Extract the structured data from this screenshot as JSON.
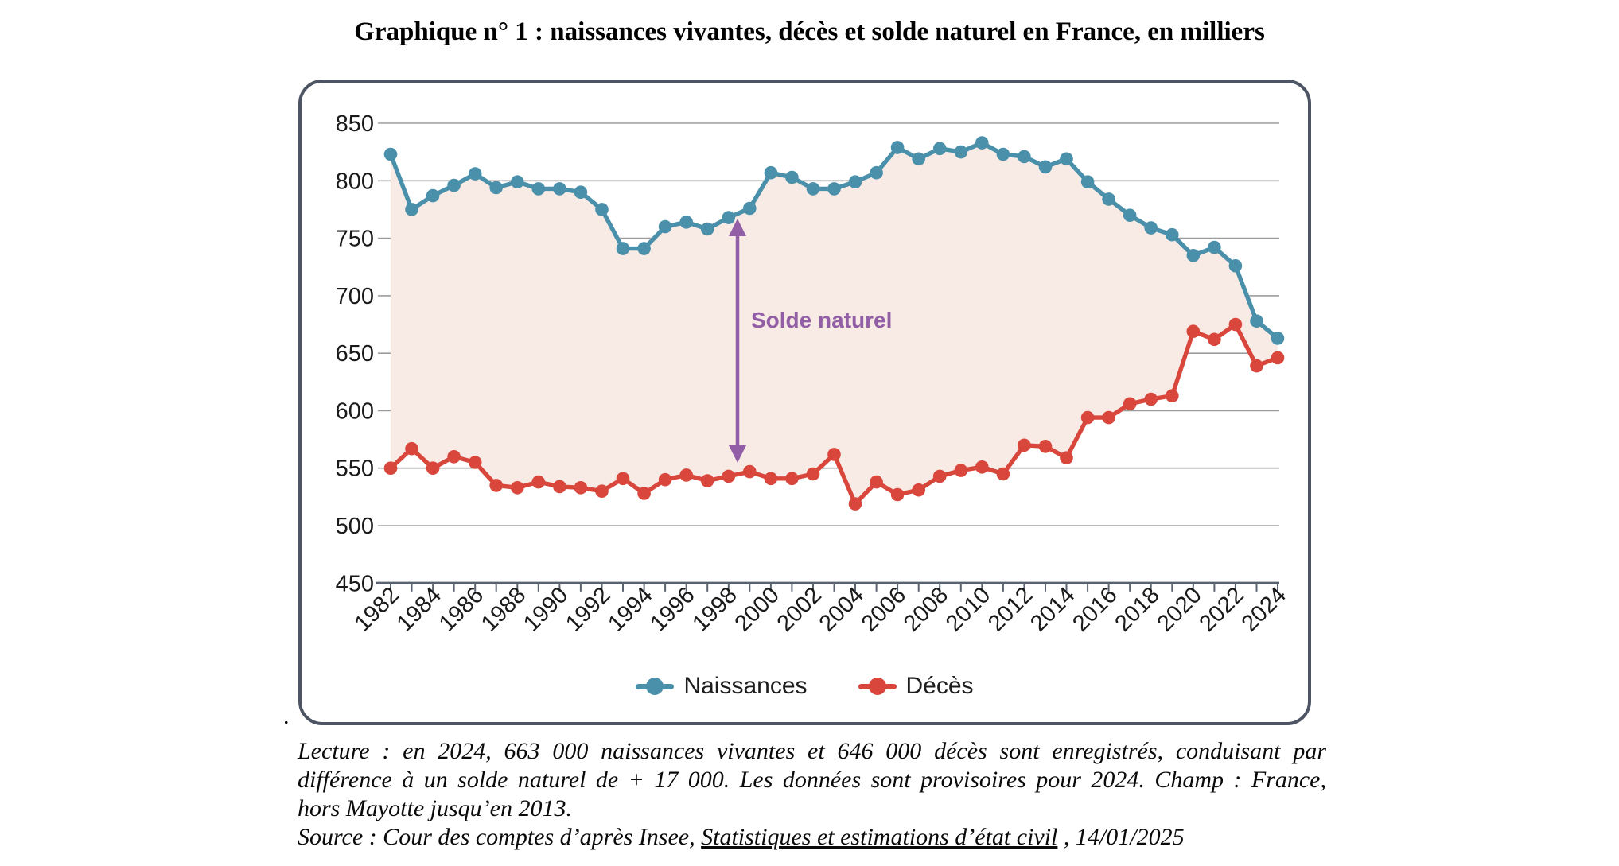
{
  "title": "Graphique n° 1 : naissances vivantes, décès et solde naturel en France, en milliers",
  "chart_data": {
    "type": "line",
    "x_years": [
      1982,
      1983,
      1984,
      1985,
      1986,
      1987,
      1988,
      1989,
      1990,
      1991,
      1992,
      1993,
      1994,
      1995,
      1996,
      1997,
      1998,
      1999,
      2000,
      2001,
      2002,
      2003,
      2004,
      2005,
      2006,
      2007,
      2008,
      2009,
      2010,
      2011,
      2012,
      2013,
      2014,
      2015,
      2016,
      2017,
      2018,
      2019,
      2020,
      2021,
      2022,
      2023,
      2024
    ],
    "series": [
      {
        "name": "Naissances",
        "color": "#4a90aa",
        "values": [
          823,
          775,
          787,
          796,
          806,
          794,
          799,
          793,
          793,
          790,
          775,
          741,
          741,
          760,
          764,
          758,
          768,
          776,
          807,
          803,
          793,
          793,
          799,
          807,
          829,
          819,
          828,
          825,
          833,
          823,
          821,
          812,
          819,
          799,
          784,
          770,
          759,
          753,
          735,
          742,
          726,
          678,
          663
        ]
      },
      {
        "name": "Décès",
        "color": "#d8463c",
        "values": [
          550,
          567,
          550,
          560,
          555,
          535,
          533,
          538,
          534,
          533,
          530,
          541,
          528,
          540,
          544,
          539,
          543,
          547,
          541,
          541,
          545,
          562,
          519,
          538,
          527,
          531,
          543,
          548,
          551,
          545,
          570,
          569,
          559,
          594,
          594,
          606,
          610,
          613,
          669,
          662,
          675,
          639,
          646
        ]
      }
    ],
    "ylim": [
      450,
      850
    ],
    "ytick_step": 50,
    "xtick_label_every": 2,
    "grid": true,
    "legend_position": "bottom",
    "annotation": {
      "label": "Solde naturel",
      "color": "#925fa6",
      "arrow_between_years": "1998-1999"
    },
    "style": {
      "area_fill": "#f8ebe6",
      "grid_color": "#9d9d9d",
      "axis_color": "#5a6270",
      "box_border": "#4d5463",
      "tick_label_color": "#1a1a1a"
    }
  },
  "notes": {
    "lecture_lines": [
      "Lecture : en 2024, 663 000 naissances vivantes et 646 000 décès sont enregistrés, conduisant par",
      "différence à un solde naturel de + 17 000. Les données sont provisoires pour 2024. Champ : France,",
      "hors Mayotte jusqu’en 2013."
    ],
    "source": {
      "prefix": "Source : Cour des comptes d’après Insee, ",
      "link": "Statistiques et estimations d’état civil",
      "suffix": " , 14/01/2025"
    },
    "stray_period": "."
  }
}
